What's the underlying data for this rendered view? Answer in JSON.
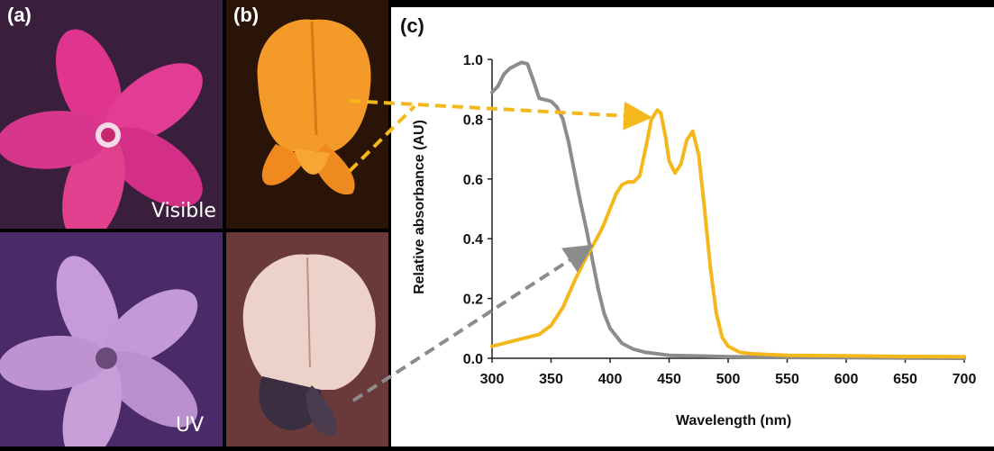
{
  "panels": {
    "a_label": "(a)",
    "b_label": "(b)",
    "c_label": "(c)",
    "visible_caption": "Visible",
    "uv_caption": "UV"
  },
  "colors": {
    "uv_pigment": "#8c8c8c",
    "visible_pigment": "#f5b81c",
    "background_purple": "#4a2a52"
  },
  "chart_data": {
    "type": "line",
    "title": "",
    "xlabel": "Wavelength (nm)",
    "ylabel": "Relative absorbance (AU)",
    "xlim": [
      300,
      700
    ],
    "ylim": [
      0,
      1.0
    ],
    "xticks": [
      "300",
      "350",
      "400",
      "450",
      "500",
      "550",
      "600",
      "650",
      "700"
    ],
    "yticks": [
      "0.0",
      "0.2",
      "0.4",
      "0.6",
      "0.8",
      "1.0"
    ],
    "grid": false,
    "legend": "none",
    "series": [
      {
        "color": "#8c8c8c",
        "x": [
          300,
          305,
          310,
          315,
          320,
          325,
          330,
          335,
          340,
          345,
          350,
          355,
          360,
          365,
          370,
          375,
          380,
          385,
          390,
          395,
          400,
          410,
          420,
          430,
          450,
          500,
          550,
          600,
          700
        ],
        "y": [
          0.89,
          0.91,
          0.95,
          0.97,
          0.98,
          0.99,
          0.985,
          0.93,
          0.87,
          0.865,
          0.86,
          0.84,
          0.8,
          0.72,
          0.62,
          0.52,
          0.43,
          0.33,
          0.23,
          0.15,
          0.1,
          0.05,
          0.03,
          0.02,
          0.01,
          0.005,
          0.003,
          0.002,
          0.0
        ]
      },
      {
        "color": "#f5b81c",
        "x": [
          300,
          320,
          340,
          350,
          360,
          370,
          380,
          390,
          395,
          400,
          405,
          410,
          415,
          420,
          425,
          430,
          435,
          440,
          443,
          447,
          450,
          455,
          460,
          465,
          470,
          475,
          480,
          485,
          490,
          495,
          500,
          510,
          520,
          550,
          600,
          650,
          700
        ],
        "y": [
          0.04,
          0.06,
          0.08,
          0.11,
          0.17,
          0.26,
          0.34,
          0.41,
          0.45,
          0.5,
          0.55,
          0.58,
          0.59,
          0.59,
          0.61,
          0.7,
          0.8,
          0.83,
          0.82,
          0.74,
          0.66,
          0.62,
          0.65,
          0.73,
          0.76,
          0.68,
          0.5,
          0.3,
          0.15,
          0.07,
          0.04,
          0.02,
          0.015,
          0.01,
          0.008,
          0.006,
          0.005
        ]
      }
    ]
  }
}
